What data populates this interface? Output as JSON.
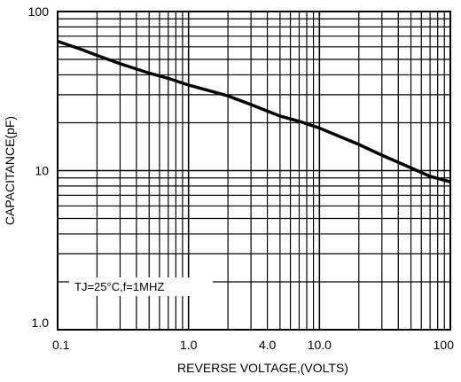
{
  "chart_data": {
    "type": "line",
    "x_scale": "log",
    "y_scale": "log",
    "xlim": [
      0.1,
      100
    ],
    "ylim": [
      1.0,
      100
    ],
    "grid": true,
    "xlabel": "REVERSE VOLTAGE,(VOLTS)",
    "ylabel": "CAPACITANCE(pF)",
    "x_ticks": [
      {
        "value": 0.1,
        "label": "0.1"
      },
      {
        "value": 1.0,
        "label": "1.0"
      },
      {
        "value": 4.0,
        "label": "4.0"
      },
      {
        "value": 10.0,
        "label": "10.0"
      },
      {
        "value": 100,
        "label": "100"
      }
    ],
    "y_ticks": [
      {
        "value": 1.0,
        "label": "1.0"
      },
      {
        "value": 10,
        "label": "10"
      },
      {
        "value": 100,
        "label": "100"
      }
    ],
    "annotation": {
      "text": "TJ=25°C,f=1MHZ"
    },
    "series": [
      {
        "x": [
          0.1,
          0.15,
          0.2,
          0.3,
          0.5,
          0.7,
          1.0,
          1.5,
          2.0,
          3.0,
          5.0,
          7.0,
          10.0,
          20.0,
          30.0,
          50.0,
          70.0,
          100
        ],
        "y": [
          65,
          58,
          53,
          47,
          41,
          38,
          34.5,
          31.5,
          29.5,
          26,
          22,
          20.4,
          18.5,
          14.6,
          12.5,
          10.4,
          9.2,
          8.5
        ]
      }
    ]
  }
}
